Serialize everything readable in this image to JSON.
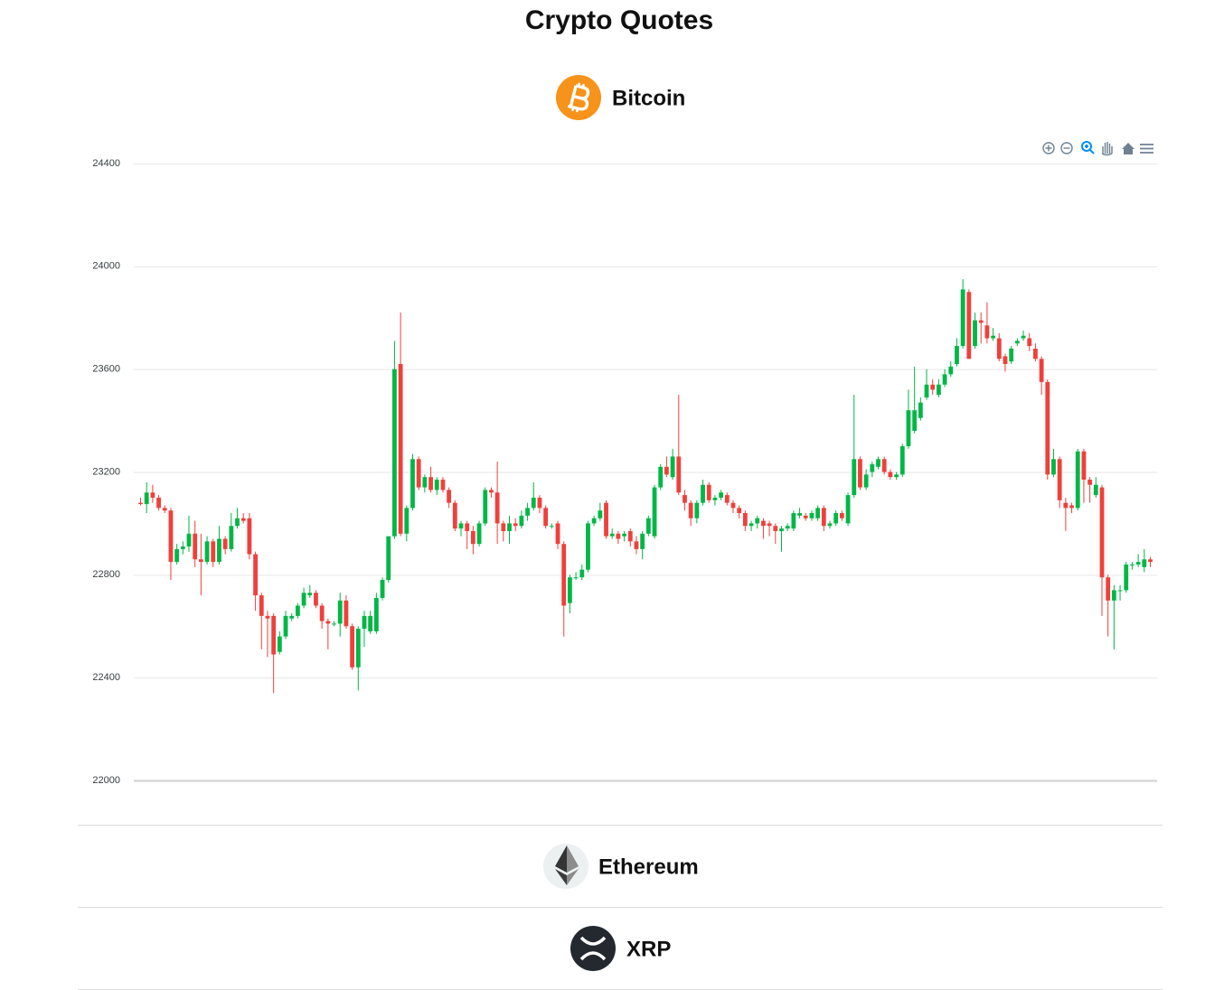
{
  "header": {
    "title": "Crypto Quotes"
  },
  "coins": [
    {
      "name": "Bitcoin"
    },
    {
      "name": "Ethereum"
    },
    {
      "name": "XRP"
    }
  ],
  "chart_data": {
    "type": "candlestick",
    "up_color": "#00b746",
    "down_color": "#ef403c",
    "ylim": [
      22000,
      24400
    ],
    "yticks": [
      22000,
      22400,
      22800,
      23200,
      23600,
      24000,
      24400
    ],
    "grid": true,
    "ohlc": [
      [
        23080,
        23100,
        23070,
        23075
      ],
      [
        23075,
        23160,
        23040,
        23120
      ],
      [
        23120,
        23150,
        23080,
        23100
      ],
      [
        23100,
        23110,
        23050,
        23060
      ],
      [
        23060,
        23070,
        23040,
        23050
      ],
      [
        23050,
        23060,
        22780,
        22850
      ],
      [
        22850,
        22920,
        22840,
        22900
      ],
      [
        22900,
        22930,
        22880,
        22910
      ],
      [
        22910,
        23030,
        22890,
        22960
      ],
      [
        22960,
        23010,
        22830,
        22860
      ],
      [
        22860,
        22960,
        22720,
        22850
      ],
      [
        22850,
        22950,
        22840,
        22930
      ],
      [
        22930,
        22940,
        22830,
        22850
      ],
      [
        22850,
        22990,
        22840,
        22940
      ],
      [
        22940,
        22950,
        22880,
        22900
      ],
      [
        22900,
        23040,
        22890,
        22990
      ],
      [
        22990,
        23060,
        22980,
        23020
      ],
      [
        23020,
        23040,
        23000,
        23010
      ],
      [
        23020,
        23040,
        22860,
        22880
      ],
      [
        22880,
        22890,
        22660,
        22720
      ],
      [
        22720,
        22730,
        22510,
        22640
      ],
      [
        22640,
        22660,
        22480,
        22630
      ],
      [
        22640,
        22650,
        22340,
        22490
      ],
      [
        22500,
        22580,
        22490,
        22560
      ],
      [
        22560,
        22660,
        22550,
        22640
      ],
      [
        22630,
        22650,
        22620,
        22640
      ],
      [
        22640,
        22690,
        22630,
        22680
      ],
      [
        22680,
        22750,
        22670,
        22730
      ],
      [
        22720,
        22760,
        22710,
        22730
      ],
      [
        22730,
        22740,
        22670,
        22680
      ],
      [
        22680,
        22690,
        22590,
        22620
      ],
      [
        22620,
        22630,
        22510,
        22610
      ],
      [
        22610,
        22620,
        22600,
        22610
      ],
      [
        22610,
        22730,
        22560,
        22700
      ],
      [
        22700,
        22720,
        22590,
        22600
      ],
      [
        22600,
        22610,
        22430,
        22440
      ],
      [
        22440,
        22600,
        22350,
        22590
      ],
      [
        22590,
        22660,
        22520,
        22640
      ],
      [
        22580,
        22660,
        22570,
        22640
      ],
      [
        22580,
        22730,
        22570,
        22710
      ],
      [
        22710,
        22790,
        22700,
        22780
      ],
      [
        22780,
        22950,
        22770,
        22950
      ],
      [
        22950,
        23710,
        22940,
        23600
      ],
      [
        23620,
        23820,
        22950,
        22960
      ],
      [
        22960,
        23070,
        22930,
        23060
      ],
      [
        23060,
        23270,
        23050,
        23250
      ],
      [
        23250,
        23260,
        23130,
        23140
      ],
      [
        23140,
        23190,
        23120,
        23180
      ],
      [
        23180,
        23220,
        23120,
        23130
      ],
      [
        23130,
        23180,
        23110,
        23170
      ],
      [
        23170,
        23180,
        23120,
        23130
      ],
      [
        23130,
        23140,
        23060,
        23080
      ],
      [
        23080,
        23090,
        22970,
        22980
      ],
      [
        22980,
        23010,
        22950,
        23000
      ],
      [
        23000,
        23010,
        22900,
        22970
      ],
      [
        22970,
        22990,
        22880,
        22920
      ],
      [
        22920,
        23010,
        22910,
        23000
      ],
      [
        23000,
        23140,
        22990,
        23130
      ],
      [
        23130,
        23140,
        23100,
        23120
      ],
      [
        23120,
        23240,
        22920,
        23000
      ],
      [
        23000,
        23010,
        22930,
        22970
      ],
      [
        22970,
        23030,
        22920,
        23000
      ],
      [
        23000,
        23020,
        22970,
        22990
      ],
      [
        22990,
        23050,
        22980,
        23030
      ],
      [
        23030,
        23080,
        23010,
        23060
      ],
      [
        23060,
        23160,
        23050,
        23100
      ],
      [
        23100,
        23110,
        23040,
        23060
      ],
      [
        23060,
        23070,
        22980,
        22990
      ],
      [
        22990,
        23000,
        22980,
        22990
      ],
      [
        23000,
        23010,
        22900,
        22920
      ],
      [
        22920,
        22930,
        22560,
        22680
      ],
      [
        22690,
        22800,
        22650,
        22790
      ],
      [
        22790,
        22810,
        22780,
        22790
      ],
      [
        22790,
        22840,
        22780,
        22820
      ],
      [
        22820,
        23010,
        22810,
        23000
      ],
      [
        23000,
        23030,
        22990,
        23020
      ],
      [
        23020,
        23080,
        23010,
        23050
      ],
      [
        23080,
        23090,
        22940,
        22950
      ],
      [
        22950,
        22980,
        22940,
        22960
      ],
      [
        22960,
        22970,
        22920,
        22940
      ],
      [
        22950,
        22970,
        22930,
        22960
      ],
      [
        22970,
        22980,
        22910,
        22930
      ],
      [
        22930,
        22950,
        22880,
        22900
      ],
      [
        22900,
        22970,
        22860,
        22960
      ],
      [
        22960,
        23030,
        22950,
        23020
      ],
      [
        22950,
        23150,
        22940,
        23140
      ],
      [
        23140,
        23230,
        23130,
        23220
      ],
      [
        23220,
        23260,
        23180,
        23190
      ],
      [
        23180,
        23290,
        23170,
        23260
      ],
      [
        23260,
        23500,
        23110,
        23120
      ],
      [
        23110,
        23130,
        23050,
        23080
      ],
      [
        23080,
        23090,
        22990,
        23020
      ],
      [
        23020,
        23090,
        23000,
        23080
      ],
      [
        23080,
        23170,
        23070,
        23150
      ],
      [
        23150,
        23160,
        23080,
        23090
      ],
      [
        23090,
        23110,
        23070,
        23100
      ],
      [
        23100,
        23130,
        23090,
        23120
      ],
      [
        23110,
        23120,
        23070,
        23080
      ],
      [
        23080,
        23090,
        23040,
        23060
      ],
      [
        23060,
        23070,
        23020,
        23040
      ],
      [
        23040,
        23050,
        22970,
        22990
      ],
      [
        22990,
        23010,
        22970,
        23000
      ],
      [
        23000,
        23030,
        22980,
        23020
      ],
      [
        23010,
        23020,
        22940,
        22990
      ],
      [
        23000,
        23010,
        22950,
        22990
      ],
      [
        22990,
        23000,
        22920,
        22970
      ],
      [
        22970,
        22990,
        22890,
        22980
      ],
      [
        22980,
        23000,
        22970,
        22990
      ],
      [
        22980,
        23050,
        22970,
        23040
      ],
      [
        23030,
        23060,
        23020,
        23040
      ],
      [
        23030,
        23040,
        23010,
        23020
      ],
      [
        23020,
        23050,
        23010,
        23040
      ],
      [
        23020,
        23070,
        23010,
        23060
      ],
      [
        23060,
        23070,
        22970,
        22990
      ],
      [
        22990,
        23010,
        22980,
        23000
      ],
      [
        23000,
        23050,
        22990,
        23040
      ],
      [
        23040,
        23050,
        23010,
        23020
      ],
      [
        23000,
        23120,
        22990,
        23110
      ],
      [
        23110,
        23500,
        23100,
        23250
      ],
      [
        23250,
        23260,
        23130,
        23140
      ],
      [
        23140,
        23210,
        23130,
        23190
      ],
      [
        23200,
        23240,
        23180,
        23230
      ],
      [
        23220,
        23260,
        23210,
        23250
      ],
      [
        23250,
        23260,
        23190,
        23200
      ],
      [
        23200,
        23210,
        23170,
        23180
      ],
      [
        23180,
        23200,
        23170,
        23190
      ],
      [
        23190,
        23310,
        23180,
        23300
      ],
      [
        23300,
        23520,
        23290,
        23440
      ],
      [
        23360,
        23610,
        23350,
        23440
      ],
      [
        23410,
        23490,
        23400,
        23470
      ],
      [
        23490,
        23600,
        23480,
        23540
      ],
      [
        23540,
        23560,
        23500,
        23520
      ],
      [
        23500,
        23560,
        23490,
        23540
      ],
      [
        23540,
        23600,
        23530,
        23580
      ],
      [
        23580,
        23630,
        23570,
        23610
      ],
      [
        23620,
        23720,
        23610,
        23690
      ],
      [
        23690,
        23950,
        23680,
        23910
      ],
      [
        23900,
        23910,
        23640,
        23640
      ],
      [
        23690,
        23820,
        23680,
        23790
      ],
      [
        23790,
        23820,
        23700,
        23780
      ],
      [
        23770,
        23860,
        23700,
        23720
      ],
      [
        23720,
        23760,
        23710,
        23730
      ],
      [
        23720,
        23740,
        23630,
        23640
      ],
      [
        23650,
        23660,
        23590,
        23620
      ],
      [
        23630,
        23690,
        23620,
        23680
      ],
      [
        23700,
        23720,
        23690,
        23710
      ],
      [
        23720,
        23750,
        23710,
        23730
      ],
      [
        23720,
        23740,
        23670,
        23690
      ],
      [
        23680,
        23700,
        23630,
        23640
      ],
      [
        23640,
        23650,
        23500,
        23550
      ],
      [
        23550,
        23560,
        23170,
        23190
      ],
      [
        23190,
        23290,
        23180,
        23250
      ],
      [
        23250,
        23260,
        23060,
        23090
      ],
      [
        23080,
        23100,
        22970,
        23060
      ],
      [
        23070,
        23080,
        23040,
        23060
      ],
      [
        23060,
        23290,
        23050,
        23280
      ],
      [
        23280,
        23290,
        23080,
        23170
      ],
      [
        23170,
        23180,
        23080,
        23150
      ],
      [
        23110,
        23180,
        23100,
        23150
      ],
      [
        23140,
        23150,
        22640,
        22790
      ],
      [
        22790,
        22800,
        22560,
        22700
      ],
      [
        22700,
        22760,
        22510,
        22740
      ],
      [
        22740,
        22760,
        22700,
        22740
      ],
      [
        22740,
        22850,
        22730,
        22840
      ],
      [
        22840,
        22850,
        22820,
        22840
      ],
      [
        22840,
        22880,
        22830,
        22850
      ],
      [
        22830,
        22900,
        22810,
        22860
      ],
      [
        22860,
        22870,
        22830,
        22850
      ]
    ]
  }
}
